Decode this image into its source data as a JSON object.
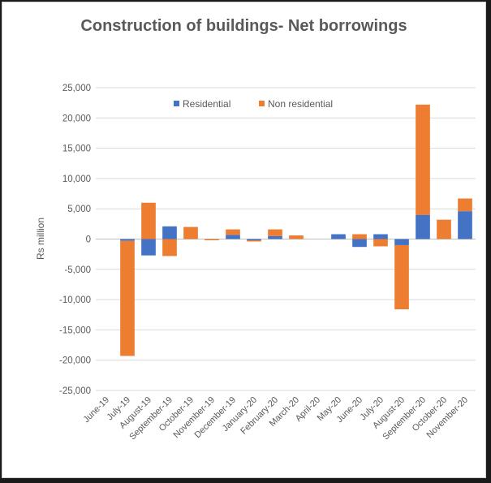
{
  "chart_data": {
    "type": "bar",
    "stacked": true,
    "title": "Construction of buildings- Net borrowings",
    "xlabel": "",
    "ylabel": "Rs million",
    "ylim": [
      -25000,
      25000
    ],
    "yticks": [
      25000,
      20000,
      15000,
      10000,
      5000,
      0,
      -5000,
      -10000,
      -15000,
      -20000,
      -25000
    ],
    "ytick_labels": [
      "25,000",
      "20,000",
      "15,000",
      "10,000",
      "5,000",
      "0",
      "-5,000",
      "-10,000",
      "-15,000",
      "-20,000",
      "-25,000"
    ],
    "grid": true,
    "legend": "top-center",
    "categories": [
      "June-19",
      "July-19",
      "August-19",
      "September-19",
      "October-19",
      "November-19",
      "December-19",
      "January-20",
      "February-20",
      "March-20",
      "April-20",
      "May-20",
      "June-20",
      "July-20",
      "August-20",
      "September-20",
      "October-20",
      "November-20"
    ],
    "series": [
      {
        "name": "Residential",
        "color": "#4472C4",
        "values": [
          0,
          -300,
          -2700,
          2100,
          0,
          0,
          700,
          -200,
          500,
          0,
          0,
          800,
          -1300,
          800,
          -1000,
          4000,
          0,
          4600
        ]
      },
      {
        "name": "Non residential",
        "color": "#ED7D31",
        "values": [
          0,
          -19000,
          6000,
          -2800,
          2000,
          -200,
          900,
          -200,
          1100,
          600,
          0,
          0,
          800,
          -1200,
          -10600,
          18200,
          3200,
          2100
        ]
      }
    ]
  }
}
